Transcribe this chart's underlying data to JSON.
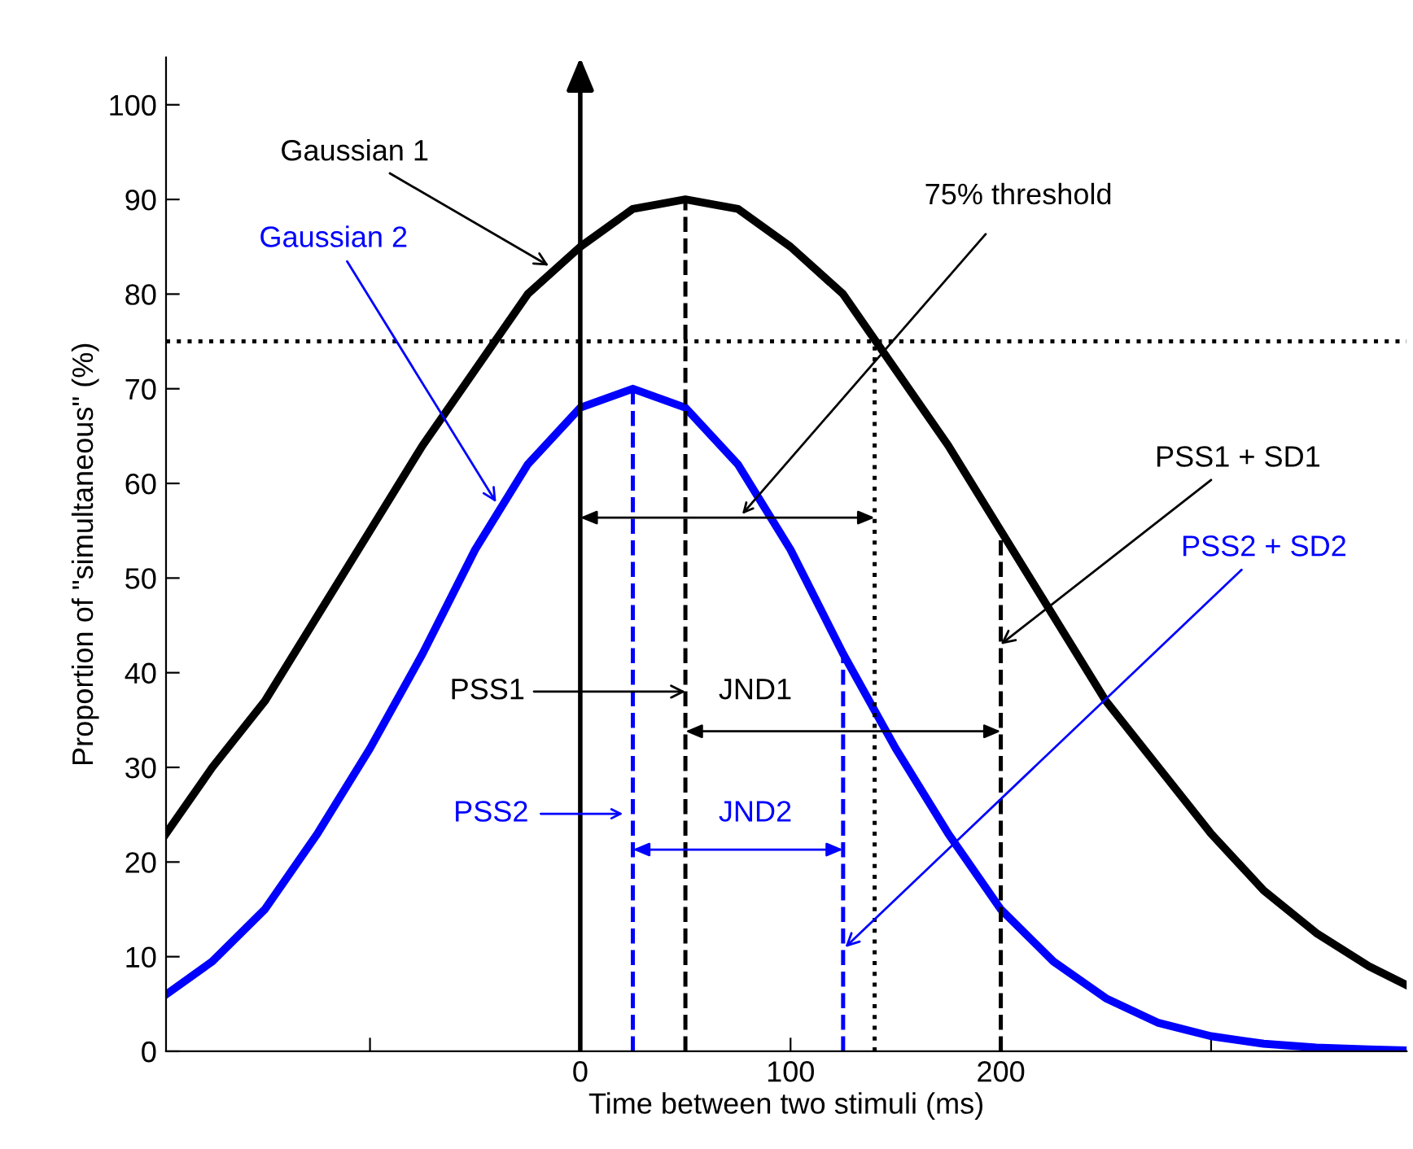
{
  "chart_data": {
    "type": "line",
    "xlabel": "Time between two stimuli (ms)",
    "ylabel": "Proportion of \"simultaneous\" (%)",
    "xlim": [
      -197,
      393
    ],
    "xticks": [
      {
        "value": -100,
        "label": null
      },
      0,
      100,
      200,
      {
        "value": 300,
        "label": null
      }
    ],
    "ylim": [
      0,
      105
    ],
    "yticks": [
      0,
      10,
      20,
      30,
      40,
      50,
      60,
      70,
      80,
      90,
      100
    ],
    "grid": false,
    "legend": false,
    "marker": "none",
    "line_style": "solid",
    "series": [
      {
        "color": "#000000",
        "x": [
          -197,
          -175,
          -150,
          -125,
          -100,
          -75,
          -50,
          -25,
          0,
          25,
          50,
          75,
          100,
          125,
          150,
          175,
          200,
          225,
          250,
          275,
          300,
          325,
          350,
          375,
          393
        ],
        "values": [
          23,
          30,
          37,
          46,
          55,
          64,
          72,
          80,
          85,
          89,
          90,
          89,
          85,
          80,
          72,
          64,
          55,
          46,
          37,
          30,
          23,
          17,
          12.5,
          9,
          7
        ]
      },
      {
        "color": "#0000ff",
        "x": [
          -197,
          -175,
          -150,
          -125,
          -100,
          -75,
          -50,
          -25,
          0,
          25,
          50,
          75,
          100,
          125,
          150,
          175,
          200,
          225,
          250,
          275,
          300,
          325,
          350,
          375,
          393
        ],
        "values": [
          6,
          9.5,
          15,
          23,
          32,
          42,
          53,
          62,
          68,
          70,
          68,
          62,
          53,
          42,
          32,
          23,
          15,
          9.5,
          5.6,
          3,
          1.6,
          0.8,
          0.4,
          0.2,
          0.1
        ]
      }
    ],
    "ref_lines": [
      {
        "axis": "x",
        "value": 0,
        "color": "#000000",
        "line_style": "solid"
      },
      {
        "axis": "x",
        "value": 50,
        "color": "#000000",
        "line_style": "dashed"
      },
      {
        "axis": "x",
        "value": 25,
        "color": "#0000ff",
        "line_style": "dashed"
      },
      {
        "axis": "x",
        "value": 125,
        "color": "#0000ff",
        "line_style": "dashed"
      },
      {
        "axis": "x",
        "value": 200,
        "color": "#000000",
        "line_style": "dashed"
      },
      {
        "axis": "x",
        "value": 140,
        "color": "#000000",
        "line_style": "dotted"
      },
      {
        "axis": "y",
        "value": 75,
        "color": "#000000",
        "line_style": "dotted"
      }
    ],
    "annotations": [
      {
        "text": "Gaussian 1",
        "x": -15,
        "y": 83
      },
      {
        "text": "Gaussian 2",
        "x": -40,
        "y": 58
      },
      "75% threshold",
      {
        "text": "PSS1 + SD1",
        "x": 200,
        "y": 43
      },
      {
        "text": "PSS2 + SD2",
        "x": 126,
        "y": 11
      },
      {
        "text": "PSS1",
        "x": 50,
        "y": 38
      },
      "PSS2",
      "JND1",
      "JND2"
    ]
  }
}
